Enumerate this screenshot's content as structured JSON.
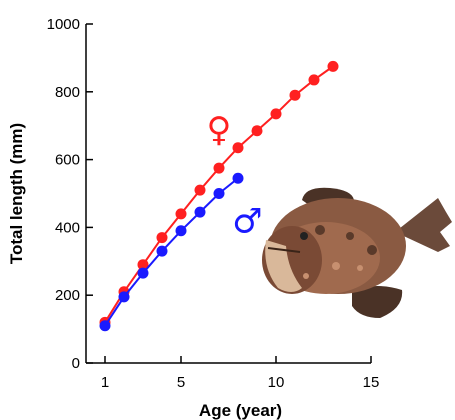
{
  "chart_data": {
    "type": "line",
    "xlabel": "Age (year)",
    "ylabel": "Total length (mm)",
    "xlim": [
      0,
      15
    ],
    "ylim": [
      0,
      1000
    ],
    "xticks": [
      1,
      5,
      10,
      15
    ],
    "yticks": [
      0,
      200,
      400,
      600,
      800,
      1000
    ],
    "grid": false,
    "series": [
      {
        "name": "♀",
        "color": "#ff2020",
        "x": [
          1,
          2,
          3,
          4,
          5,
          6,
          7,
          8,
          9,
          10,
          11,
          12,
          13
        ],
        "y": [
          120,
          210,
          290,
          370,
          440,
          510,
          575,
          635,
          685,
          735,
          790,
          835,
          875
        ]
      },
      {
        "name": "♂",
        "color": "#1a1aff",
        "x": [
          1,
          2,
          3,
          4,
          5,
          6,
          7,
          8
        ],
        "y": [
          110,
          195,
          265,
          330,
          390,
          445,
          500,
          545
        ]
      }
    ],
    "image_icon": "anglerfish-photo"
  }
}
